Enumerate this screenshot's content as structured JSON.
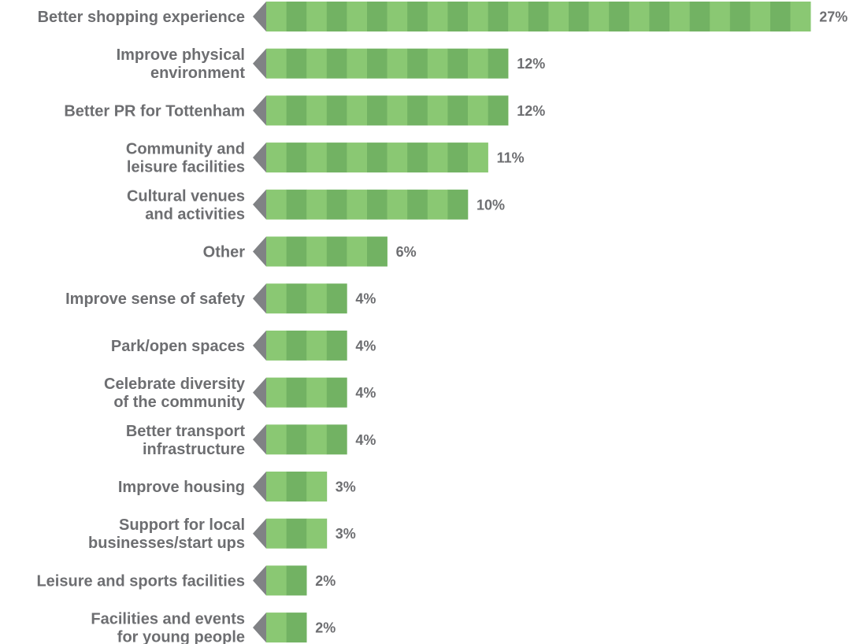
{
  "chart_data": {
    "type": "bar",
    "orientation": "horizontal",
    "unit": "%",
    "categories": [
      [
        "Better shopping experience"
      ],
      [
        "Improve physical",
        "environment"
      ],
      [
        "Better PR for Tottenham"
      ],
      [
        "Community and",
        "leisure facilities"
      ],
      [
        "Cultural venues",
        "and activities"
      ],
      [
        "Other"
      ],
      [
        "Improve sense of safety"
      ],
      [
        "Park/open spaces"
      ],
      [
        "Celebrate diversity",
        "of the community"
      ],
      [
        "Better transport",
        "infrastructure"
      ],
      [
        "Improve housing"
      ],
      [
        "Support for local",
        "businesses/start ups"
      ],
      [
        "Leisure and sports facilities"
      ],
      [
        "Facilities and events",
        "for young people"
      ]
    ],
    "values": [
      27,
      12,
      12,
      11,
      10,
      6,
      4,
      4,
      4,
      4,
      3,
      3,
      2,
      2
    ],
    "value_labels": [
      "27%",
      "12%",
      "12%",
      "11%",
      "10%",
      "6%",
      "4%",
      "4%",
      "4%",
      "4%",
      "3%",
      "3%",
      "2%",
      "2%"
    ],
    "xlim": [
      0,
      27
    ],
    "title": "",
    "xlabel": "",
    "ylabel": "",
    "grid": false,
    "legend": "none",
    "colors": {
      "stripe_light": "#8ac873",
      "stripe_dark": "#72b263",
      "arrow": "#808285",
      "text": "#6d6e71"
    }
  }
}
